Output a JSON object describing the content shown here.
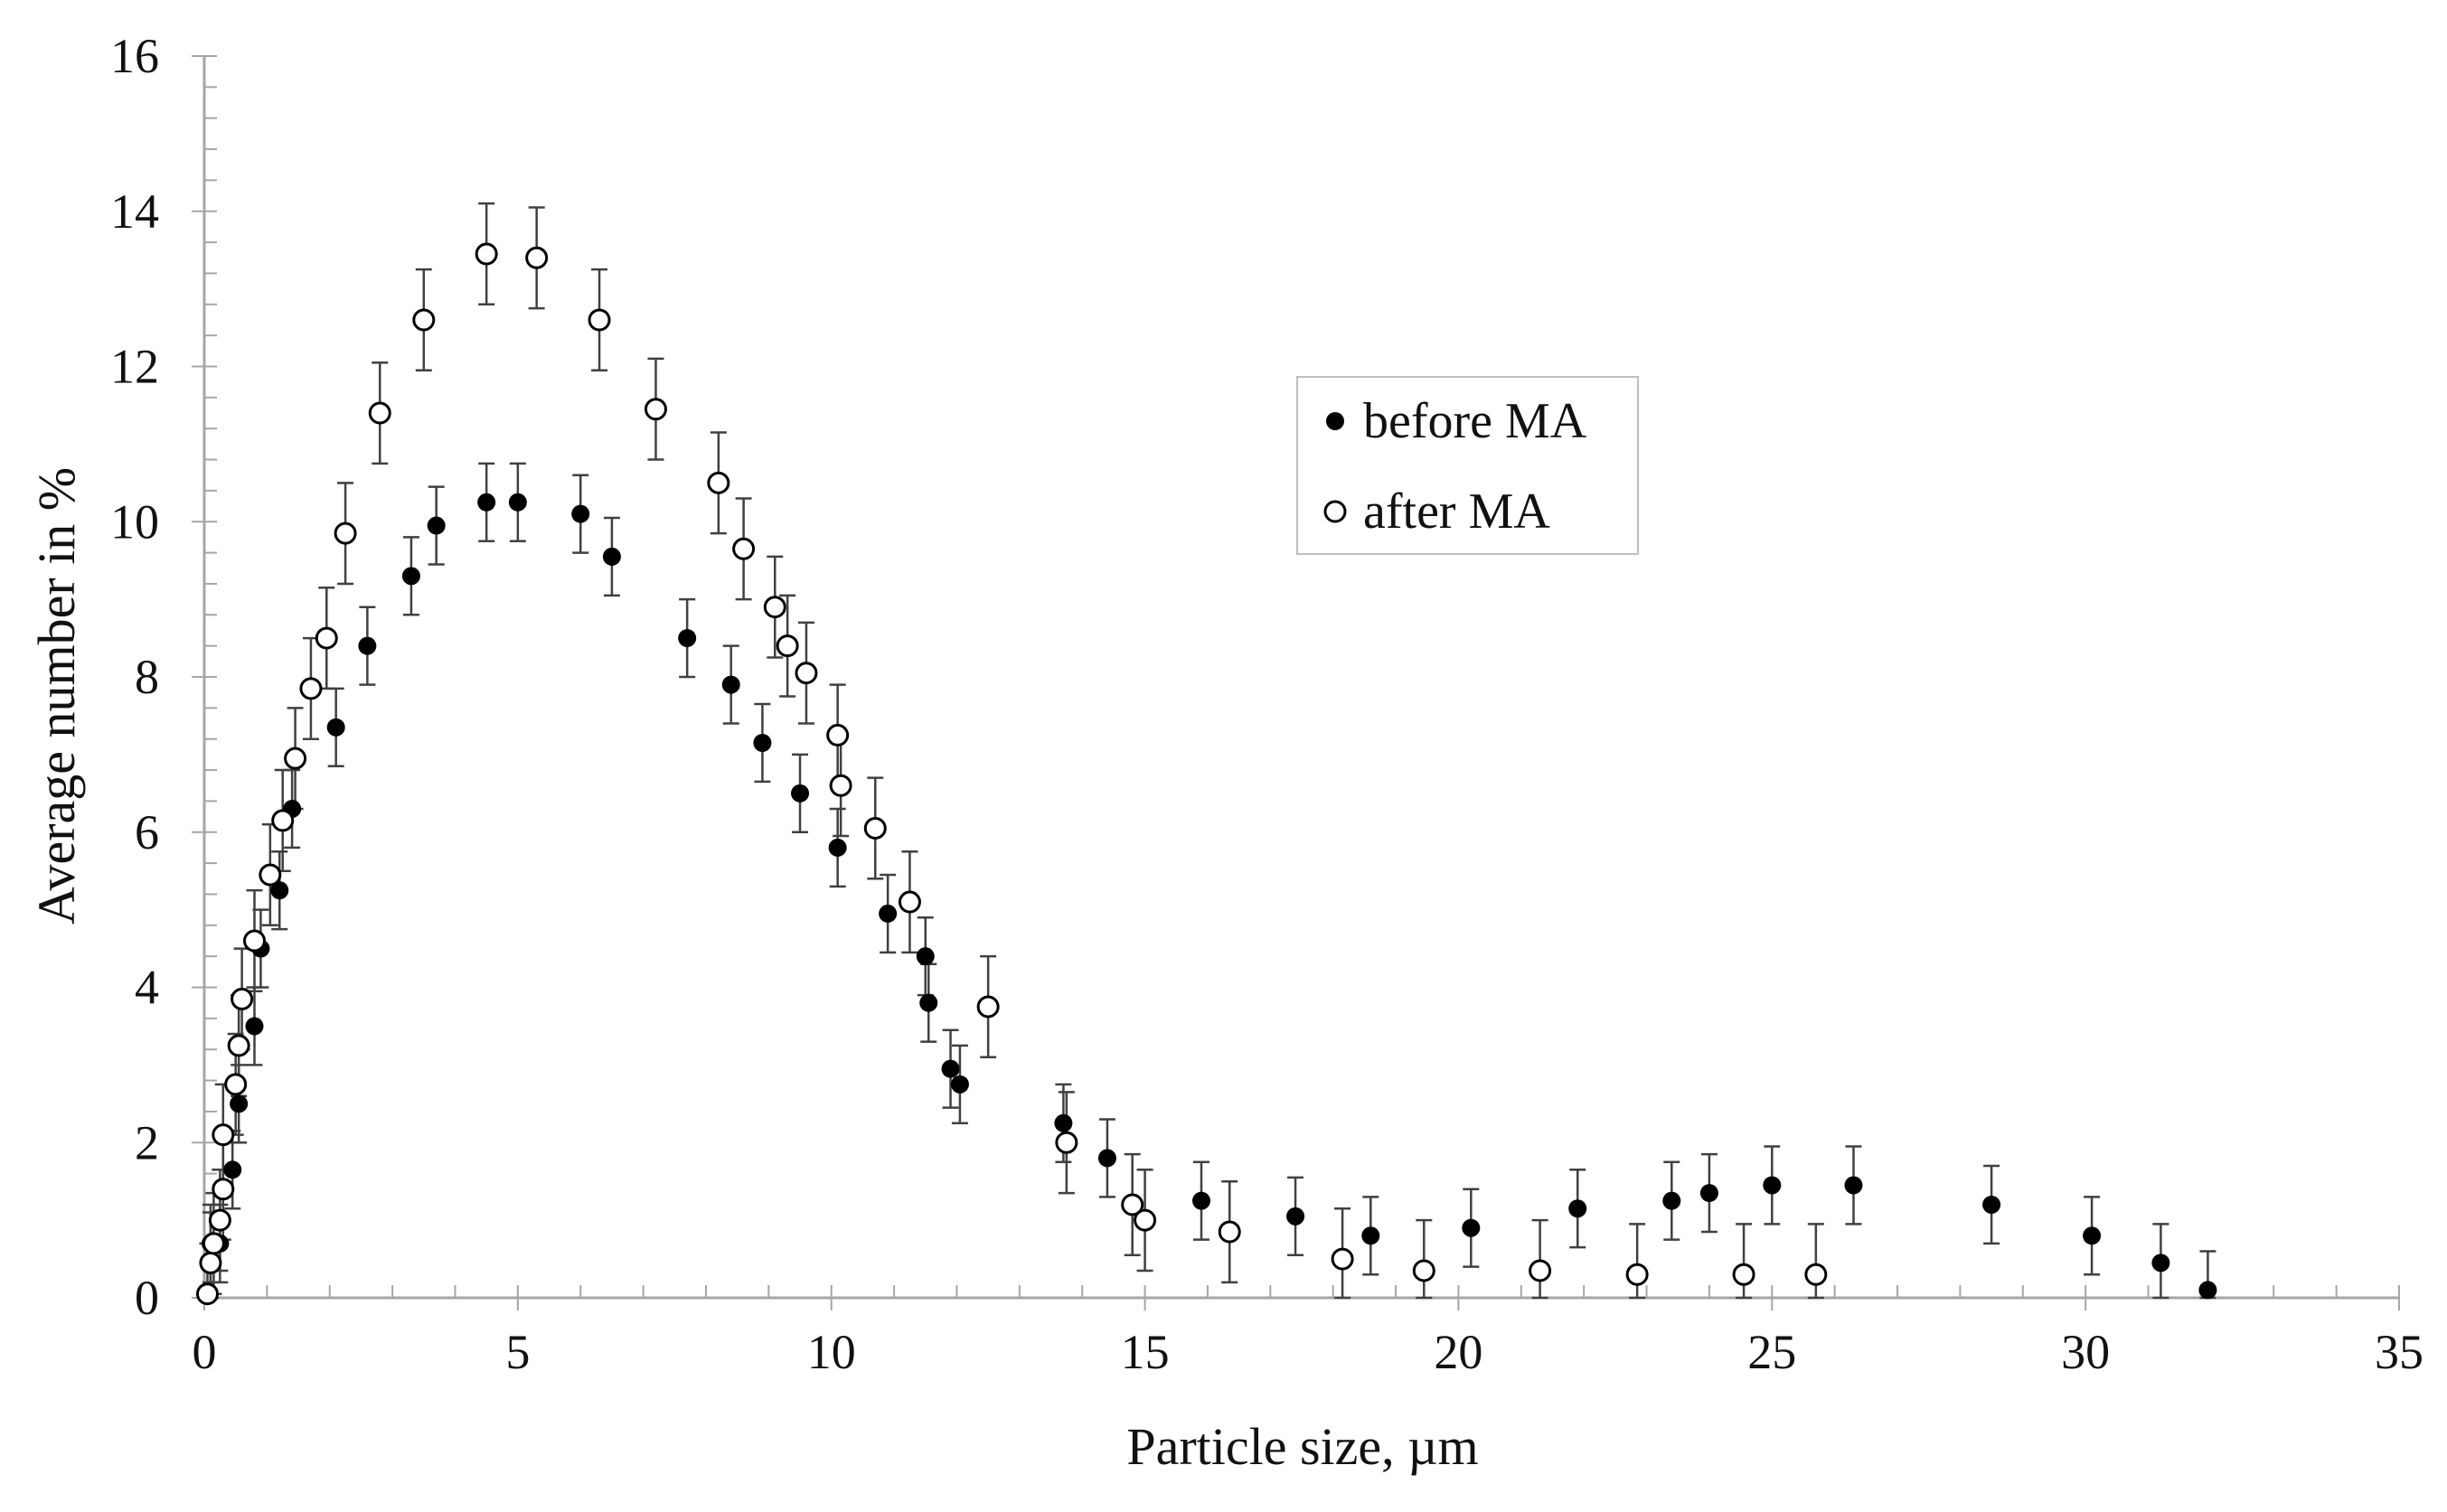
{
  "chart_data": {
    "type": "scatter",
    "title": "",
    "xlabel": "Particle size, µm",
    "ylabel": "Average  number in %",
    "xlim": [
      0,
      35
    ],
    "ylim": [
      0,
      16
    ],
    "xticks": [
      "0",
      "5",
      "10",
      "15",
      "20",
      "25",
      "30",
      "35"
    ],
    "yticks": [
      "0",
      "2",
      "4",
      "6",
      "8",
      "10",
      "12",
      "14",
      "16"
    ],
    "grid": false,
    "legend_position": "top-right-center",
    "series": [
      {
        "name": "before MA",
        "marker": "filled-circle",
        "color": "#000000",
        "error": 0.5,
        "x": [
          0.1,
          0.25,
          0.45,
          0.55,
          0.8,
          0.9,
          1.2,
          1.4,
          2.1,
          2.6,
          3.3,
          3.7,
          4.5,
          5.0,
          6.0,
          6.5,
          7.7,
          8.4,
          8.9,
          9.5,
          10.1,
          10.9,
          11.5,
          11.55,
          11.9,
          12.05,
          13.7,
          14.4,
          15.9,
          17.4,
          18.6,
          20.2,
          21.9,
          23.4,
          24.0,
          25.0,
          26.3,
          28.5,
          30.1,
          31.2,
          31.95
        ],
        "y": [
          0.7,
          0.7,
          1.65,
          2.5,
          3.5,
          4.5,
          5.25,
          6.3,
          7.35,
          8.4,
          9.3,
          9.95,
          10.25,
          10.25,
          10.1,
          9.55,
          8.5,
          7.9,
          7.15,
          6.5,
          5.8,
          4.95,
          4.4,
          3.8,
          2.95,
          2.75,
          2.25,
          1.8,
          1.25,
          1.05,
          0.8,
          0.9,
          1.15,
          1.25,
          1.35,
          1.45,
          1.45,
          1.2,
          0.8,
          0.45,
          0.1
        ]
      },
      {
        "name": "after MA",
        "marker": "open-circle",
        "color": "#000000",
        "error": 0.65,
        "x": [
          0.05,
          0.1,
          0.15,
          0.25,
          0.3,
          0.3,
          0.5,
          0.55,
          0.6,
          0.8,
          1.05,
          1.25,
          1.45,
          1.7,
          1.95,
          2.25,
          2.8,
          3.5,
          4.5,
          5.3,
          6.3,
          7.2,
          8.2,
          8.6,
          9.1,
          9.3,
          9.6,
          10.1,
          10.15,
          10.7,
          11.25,
          12.5,
          13.75,
          14.8,
          15.0,
          16.35,
          18.15,
          19.45,
          21.3,
          22.85,
          24.55,
          25.7
        ],
        "y": [
          0.05,
          0.45,
          0.7,
          1.0,
          1.4,
          2.1,
          2.75,
          3.25,
          3.85,
          4.6,
          5.45,
          6.15,
          6.95,
          7.85,
          8.5,
          9.85,
          11.4,
          12.6,
          13.45,
          13.4,
          12.6,
          11.45,
          10.5,
          9.65,
          8.9,
          8.4,
          8.05,
          7.25,
          6.6,
          6.05,
          5.1,
          3.75,
          2.0,
          1.2,
          1.0,
          0.85,
          0.5,
          0.35,
          0.35,
          0.3,
          0.3,
          0.3
        ]
      }
    ]
  }
}
